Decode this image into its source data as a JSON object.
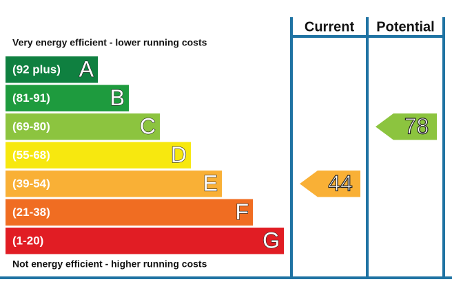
{
  "chart_data": {
    "type": "epc",
    "top_label": "Very energy efficient - lower running costs",
    "bottom_label": "Not energy efficient - higher running costs",
    "bands": [
      {
        "range": "(92 plus)",
        "letter": "A",
        "color": "#0f8040"
      },
      {
        "range": "(81-91)",
        "letter": "B",
        "color": "#1e9b3e"
      },
      {
        "range": "(69-80)",
        "letter": "C",
        "color": "#8cc43f"
      },
      {
        "range": "(55-68)",
        "letter": "D",
        "color": "#f7e80f"
      },
      {
        "range": "(39-54)",
        "letter": "E",
        "color": "#f9b036"
      },
      {
        "range": "(21-38)",
        "letter": "F",
        "color": "#f06d22"
      },
      {
        "range": "(1-20)",
        "letter": "G",
        "color": "#e11d24"
      }
    ],
    "series": [
      {
        "name": "Current",
        "value": 44,
        "color": "#f9b036"
      },
      {
        "name": "Potential",
        "value": 78,
        "color": "#8cc43f"
      }
    ]
  }
}
